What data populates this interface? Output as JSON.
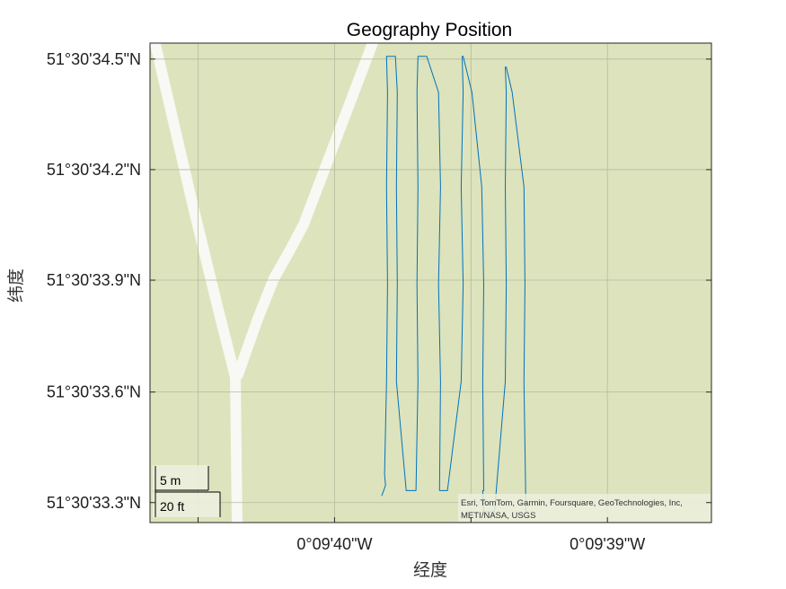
{
  "chart_data": {
    "type": "line",
    "title": "Geography Position",
    "xlabel": "经度",
    "ylabel": "纬度",
    "x_tick_labels": [
      "0°09'40\"W",
      "0°09'39\"W"
    ],
    "y_tick_labels": [
      "51°30'34.5\"N",
      "51°30'34.2\"N",
      "51°30'33.9\"N",
      "51°30'33.6\"N",
      "51°30'33.3\"N"
    ],
    "x_ticks": [
      -0.161111,
      -0.160833
    ],
    "y_ticks": [
      51.509583,
      51.5095,
      51.509417,
      51.509333,
      51.50925
    ],
    "xlim": [
      -0.161299,
      -0.160727
    ],
    "ylim": [
      51.509235,
      51.509595
    ],
    "grid": true,
    "basemap": "topographic",
    "series": [
      {
        "color": "#0072BD",
        "lon": [
          -0.161063,
          -0.161061,
          -0.161059,
          -0.16106,
          -0.161058,
          -0.161057,
          -0.161058,
          -0.161057,
          -0.161058,
          -0.161049,
          -0.161047,
          -0.161048,
          -0.161047,
          -0.161048,
          -0.161038,
          -0.161028,
          -0.161026,
          -0.161027,
          -0.161026,
          -0.161027,
          -0.161026,
          -0.161017,
          -0.161005,
          -0.161003,
          -0.161005,
          -0.161003,
          -0.161004,
          -0.161003,
          -0.160996,
          -0.160982,
          -0.16098,
          -0.160982,
          -0.16098,
          -0.160981,
          -0.16098,
          -0.160971,
          -0.160961,
          -0.160959,
          -0.16096,
          -0.160959,
          -0.16096,
          -0.160959,
          -0.160948,
          -0.160937,
          -0.160936,
          -0.160937,
          -0.160936,
          -0.160937,
          -0.160936,
          -0.16093,
          -0.160918,
          -0.160917,
          -0.160918,
          -0.160916
        ],
        "lat": [
          51.509255,
          51.509259,
          51.509263,
          51.509271,
          51.509341,
          51.509414,
          51.509487,
          51.509558,
          51.509585,
          51.509585,
          51.509558,
          51.509487,
          51.509414,
          51.509341,
          51.509259,
          51.509259,
          51.509341,
          51.509414,
          51.509487,
          51.509558,
          51.509585,
          51.509585,
          51.509558,
          51.509487,
          51.509414,
          51.509341,
          51.509259,
          51.509259,
          51.509259,
          51.509341,
          51.509414,
          51.509487,
          51.509558,
          51.509585,
          51.509585,
          51.509558,
          51.509487,
          51.509414,
          51.509341,
          51.509259,
          51.509259,
          51.509243,
          51.509243,
          51.509341,
          51.509414,
          51.509487,
          51.509558,
          51.509577,
          51.509577,
          51.509558,
          51.509487,
          51.509414,
          51.509341,
          51.509243
        ]
      }
    ]
  },
  "scale_bar": {
    "metric_label": "5 m",
    "imperial_label": "20 ft"
  },
  "attribution": [
    "Esri, TomTom, Garmin, Foursquare, GeoTechnologies, Inc,",
    "METI/NASA, USGS"
  ],
  "colors": {
    "map_land": "#dde3bc",
    "road": "#f8f8f4",
    "grid": "#b5bb9e",
    "track": "#0072BD"
  }
}
